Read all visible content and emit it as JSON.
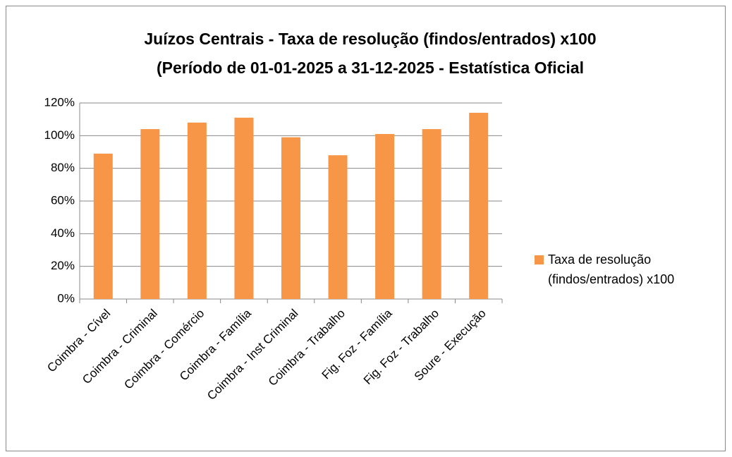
{
  "chart_data": {
    "type": "bar",
    "title": [
      "Juízos Centrais - Taxa de resolução (findos/entrados) x100",
      "(Período de 01-01-2025 a 31-12-2025 - Estatística Oficial"
    ],
    "categories": [
      "Coimbra - Cível",
      "Coimbra - Criminal",
      "Coimbra - Comércio",
      "Coimbra - Família",
      "Coimbra - Inst Criminal",
      "Coimbra - Trabalho",
      "Fig. Foz - Família",
      "Fig. Foz - Trabalho",
      "Soure - Execução"
    ],
    "series": [
      {
        "name": "Taxa de resolução (findos/entrados) x100",
        "color": "#f79646",
        "values": [
          89,
          104,
          108,
          111,
          99,
          88,
          101,
          104,
          114
        ]
      }
    ],
    "ylim": [
      0,
      120
    ],
    "yticks": [
      {
        "value": 0,
        "label": "0%"
      },
      {
        "value": 20,
        "label": "20%"
      },
      {
        "value": 40,
        "label": "40%"
      },
      {
        "value": 60,
        "label": "60%"
      },
      {
        "value": 80,
        "label": "80%"
      },
      {
        "value": 100,
        "label": "100%"
      },
      {
        "value": 120,
        "label": "120%"
      }
    ],
    "grid": true,
    "legend": "right"
  }
}
